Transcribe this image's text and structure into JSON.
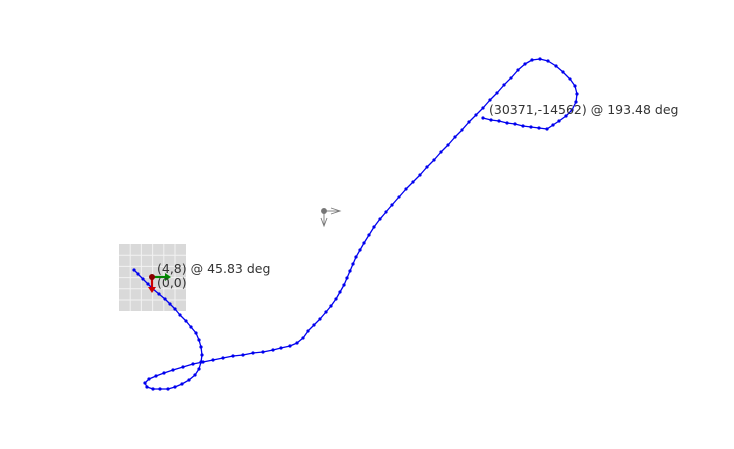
{
  "viewer": {
    "background_color": "#ffffff",
    "path_color": "#0000ee",
    "grid_fill_color": "#d9d9d9",
    "grid_line_color": "#f2f2f2"
  },
  "labels": {
    "end_pose": "(30371,-14562) @ 193.48 deg",
    "start_pose": "(4,8) @ 45.83 deg",
    "origin": "(0,0)"
  },
  "icons": {
    "origin_axes": {
      "x_axis_color": "#008800",
      "y_axis_color": "#cc0000",
      "marker_color": "#880000"
    },
    "camera_widget": {
      "color": "#777777"
    }
  }
}
